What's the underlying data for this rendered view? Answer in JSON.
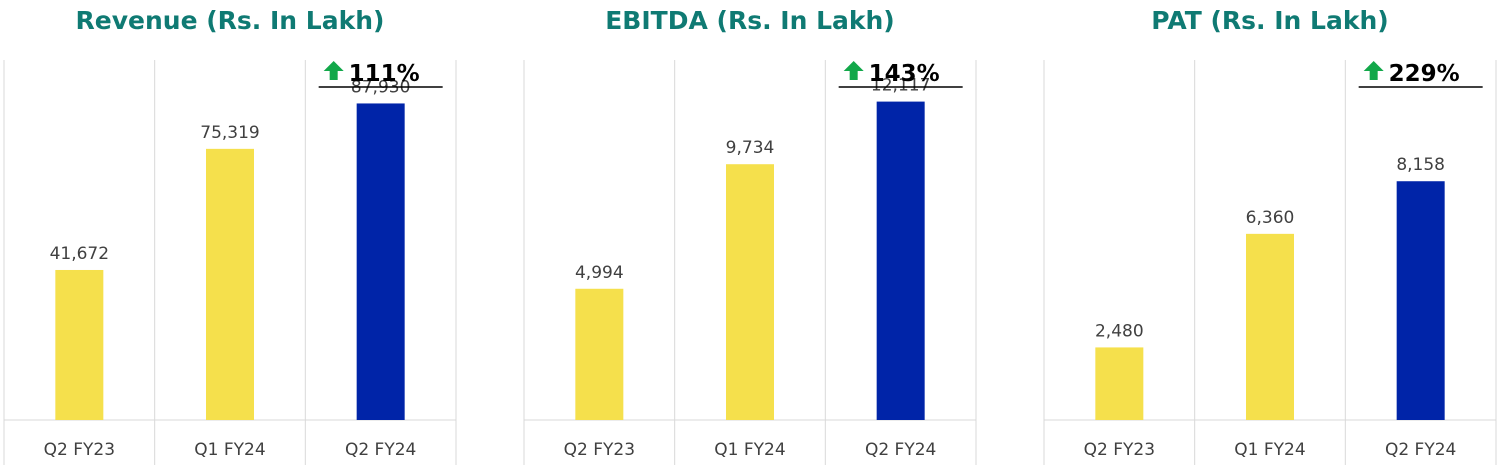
{
  "colors": {
    "title": "#0f7a73",
    "bar_prior": "#f5e04c",
    "bar_current": "#0024a8",
    "growth_arrow": "#12a84a",
    "gridline": "#d9d9d9"
  },
  "chart_data": [
    {
      "type": "bar",
      "title": "Revenue (Rs. In Lakh)",
      "categories": [
        "Q2 FY23",
        "Q1 FY24",
        "Q2 FY24"
      ],
      "values": [
        41672,
        75319,
        87930
      ],
      "value_labels": [
        "41,672",
        "75,319",
        "87,930"
      ],
      "growth": "111%",
      "growth_icon": "arrow-up-icon",
      "ylim": [
        0,
        100000
      ],
      "grid": "vertical-category-separators"
    },
    {
      "type": "bar",
      "title": "EBITDA (Rs. In Lakh)",
      "categories": [
        "Q2 FY23",
        "Q1 FY24",
        "Q2 FY24"
      ],
      "values": [
        4994,
        9734,
        12117
      ],
      "value_labels": [
        "4,994",
        "9,734",
        "12,117"
      ],
      "growth": "143%",
      "growth_icon": "arrow-up-icon",
      "ylim": [
        0,
        13700
      ],
      "grid": "vertical-category-separators"
    },
    {
      "type": "bar",
      "title": "PAT (Rs. In Lakh)",
      "categories": [
        "Q2 FY23",
        "Q1 FY24",
        "Q2 FY24"
      ],
      "values": [
        2480,
        6360,
        8158
      ],
      "value_labels": [
        "2,480",
        "6,360",
        "8,158"
      ],
      "growth": "229%",
      "growth_icon": "arrow-up-icon",
      "ylim": [
        0,
        12300
      ],
      "grid": "vertical-category-separators"
    }
  ]
}
